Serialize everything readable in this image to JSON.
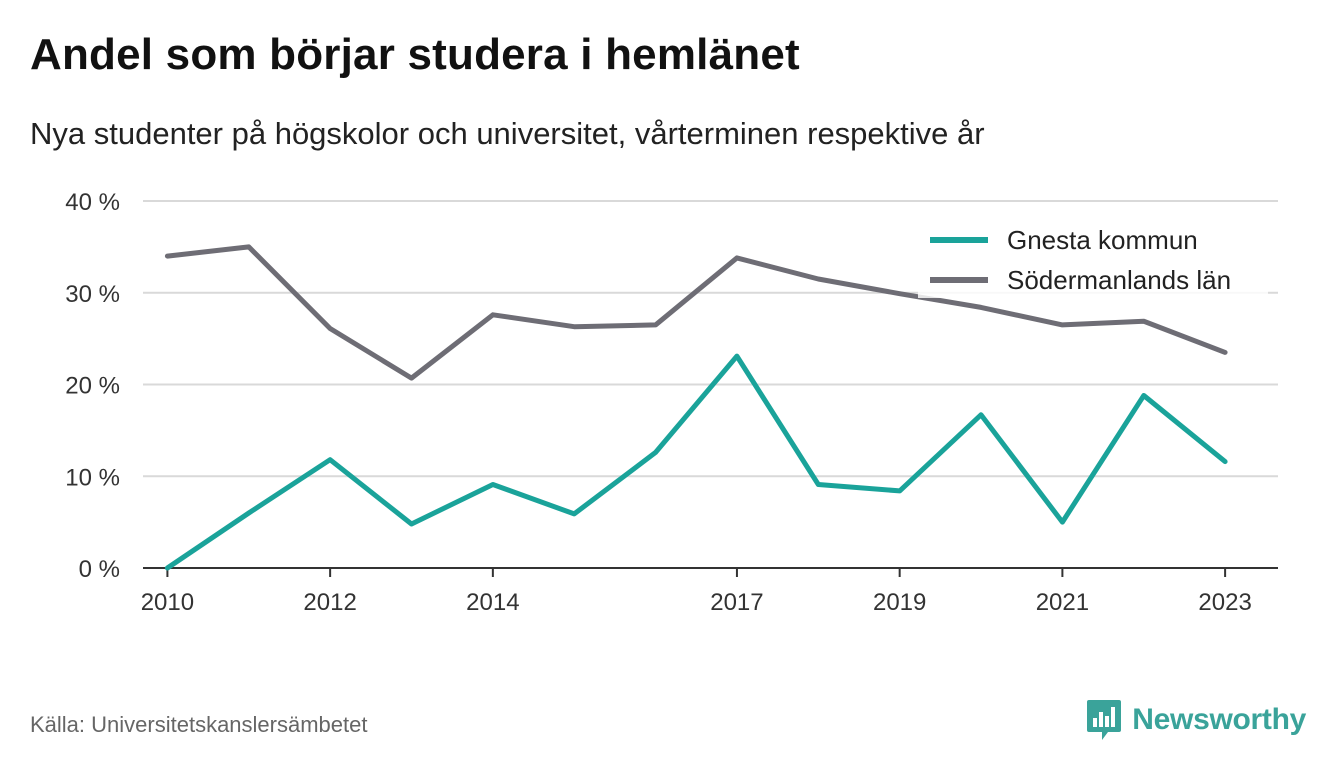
{
  "title": "Andel som börjar studera i hemlänet",
  "subtitle": "Nya studenter på högskolor och universitet, vårterminen respektive år",
  "source": "Källa: Universitetskanslersämbetet",
  "brand": "Newsworthy",
  "colors": {
    "gnesta": "#1aa39a",
    "sodermanland": "#6e6d75",
    "grid": "#d9d9d9",
    "axis": "#333333",
    "brand": "#3aa39a"
  },
  "chart_data": {
    "type": "line",
    "x": [
      2010,
      2011,
      2012,
      2013,
      2014,
      2015,
      2016,
      2017,
      2018,
      2019,
      2020,
      2021,
      2022,
      2023
    ],
    "x_tick_values": [
      2010,
      2012,
      2014,
      2017,
      2019,
      2021,
      2023
    ],
    "x_tick_labels": [
      "2010",
      "2012",
      "2014",
      "2017",
      "2019",
      "2021",
      "2023"
    ],
    "y_tick_values": [
      0,
      10,
      20,
      30,
      40
    ],
    "y_tick_labels": [
      "0 %",
      "10 %",
      "20 %",
      "30 %",
      "40 %"
    ],
    "ylim": [
      0,
      40
    ],
    "xlim": [
      2009.7,
      2023.65
    ],
    "grid": true,
    "legend_position": "top-right",
    "series": [
      {
        "name": "Gnesta kommun",
        "color": "#1aa39a",
        "values": [
          0,
          6,
          11.8,
          4.8,
          9.1,
          5.9,
          12.6,
          23.1,
          9.1,
          8.4,
          16.7,
          5.0,
          18.8,
          11.6
        ]
      },
      {
        "name": "Södermanlands län",
        "color": "#6e6d75",
        "values": [
          34.0,
          35.0,
          26.1,
          20.7,
          27.6,
          26.3,
          26.5,
          33.8,
          31.5,
          29.9,
          28.4,
          26.5,
          26.9,
          23.5
        ]
      }
    ]
  }
}
